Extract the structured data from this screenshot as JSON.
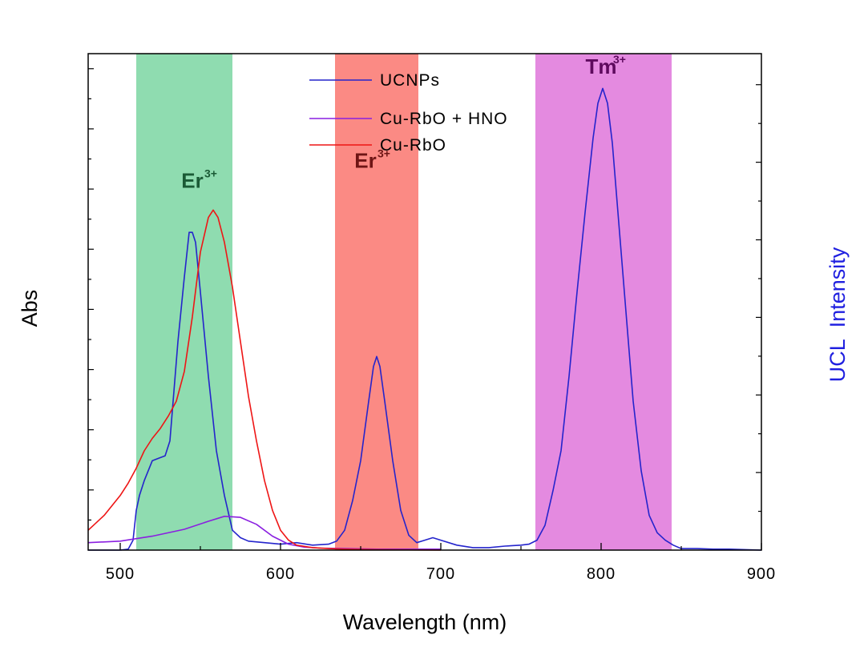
{
  "chart_data": {
    "type": "line",
    "xlabel": "Wavelength (nm)",
    "ylabel_left": "Abs",
    "ylabel_right": "UCL  Intensity",
    "xlim": [
      480,
      900
    ],
    "xticks": [
      500,
      600,
      700,
      800,
      900
    ],
    "ylim": [
      0,
      1
    ],
    "y2lim": [
      0,
      1
    ],
    "bands": [
      {
        "name": "Er",
        "sup": "3+",
        "x_range": [
          510,
          570
        ],
        "color": "#8fdcb0",
        "label_color": "#1a5a35",
        "label_x": 545,
        "label_y": 0.73
      },
      {
        "name": "Er",
        "sup": "3+",
        "x_range": [
          634,
          686
        ],
        "color": "#fb8a84",
        "label_color": "#6e1515",
        "label_x": 653,
        "label_y": 0.77
      },
      {
        "name": "Tm",
        "sup": "3+",
        "x_range": [
          759,
          844
        ],
        "color": "#e48ae0",
        "label_color": "#5e0a5e",
        "label_x": 800,
        "label_y": 0.96
      }
    ],
    "series": [
      {
        "name": "UCNPs",
        "axis": "right",
        "color": "#2424cc",
        "x": [
          480,
          490,
          500,
          505,
          508,
          510,
          512,
          515,
          520,
          524,
          528,
          531,
          533,
          536,
          540,
          543,
          545,
          547,
          550,
          555,
          560,
          565,
          570,
          575,
          580,
          590,
          600,
          610,
          620,
          630,
          635,
          640,
          645,
          650,
          655,
          658,
          660,
          662,
          665,
          670,
          675,
          680,
          685,
          690,
          695,
          700,
          710,
          720,
          730,
          740,
          750,
          755,
          760,
          765,
          770,
          775,
          780,
          785,
          790,
          795,
          798,
          801,
          804,
          807,
          810,
          815,
          820,
          825,
          830,
          835,
          840,
          845,
          850,
          860,
          870,
          880,
          900
        ],
        "y": [
          0.0,
          0.0,
          0.0,
          0.002,
          0.02,
          0.08,
          0.11,
          0.14,
          0.18,
          0.185,
          0.19,
          0.22,
          0.3,
          0.42,
          0.55,
          0.64,
          0.64,
          0.62,
          0.52,
          0.35,
          0.2,
          0.11,
          0.04,
          0.025,
          0.018,
          0.015,
          0.012,
          0.015,
          0.01,
          0.012,
          0.018,
          0.04,
          0.1,
          0.18,
          0.3,
          0.37,
          0.39,
          0.37,
          0.3,
          0.18,
          0.08,
          0.03,
          0.015,
          0.02,
          0.025,
          0.02,
          0.01,
          0.005,
          0.005,
          0.008,
          0.01,
          0.012,
          0.02,
          0.05,
          0.12,
          0.2,
          0.35,
          0.52,
          0.68,
          0.83,
          0.9,
          0.93,
          0.9,
          0.82,
          0.7,
          0.5,
          0.3,
          0.16,
          0.07,
          0.035,
          0.02,
          0.01,
          0.003,
          0.003,
          0.002,
          0.002,
          0.0
        ]
      },
      {
        "name": "Cu-RbO + HNO",
        "axis": "left",
        "color": "#8a1fe0",
        "x": [
          480,
          500,
          520,
          540,
          555,
          565,
          575,
          585,
          595,
          605,
          615,
          625,
          640,
          660,
          680,
          700
        ],
        "y": [
          0.015,
          0.018,
          0.028,
          0.042,
          0.058,
          0.068,
          0.066,
          0.052,
          0.028,
          0.012,
          0.006,
          0.004,
          0.003,
          0.002,
          0.002,
          0.002
        ]
      },
      {
        "name": "Cu-RbO",
        "axis": "left",
        "color": "#ee1515",
        "x": [
          480,
          490,
          500,
          505,
          510,
          515,
          520,
          525,
          530,
          535,
          540,
          545,
          550,
          555,
          558,
          561,
          565,
          570,
          575,
          580,
          585,
          590,
          595,
          600,
          605,
          610,
          620,
          630,
          640,
          660,
          700
        ],
        "y": [
          0.04,
          0.07,
          0.11,
          0.135,
          0.165,
          0.2,
          0.225,
          0.245,
          0.27,
          0.3,
          0.36,
          0.47,
          0.6,
          0.67,
          0.685,
          0.67,
          0.62,
          0.53,
          0.42,
          0.31,
          0.22,
          0.14,
          0.08,
          0.04,
          0.02,
          0.01,
          0.005,
          0.003,
          0.002,
          0.001,
          0.0
        ]
      }
    ]
  }
}
